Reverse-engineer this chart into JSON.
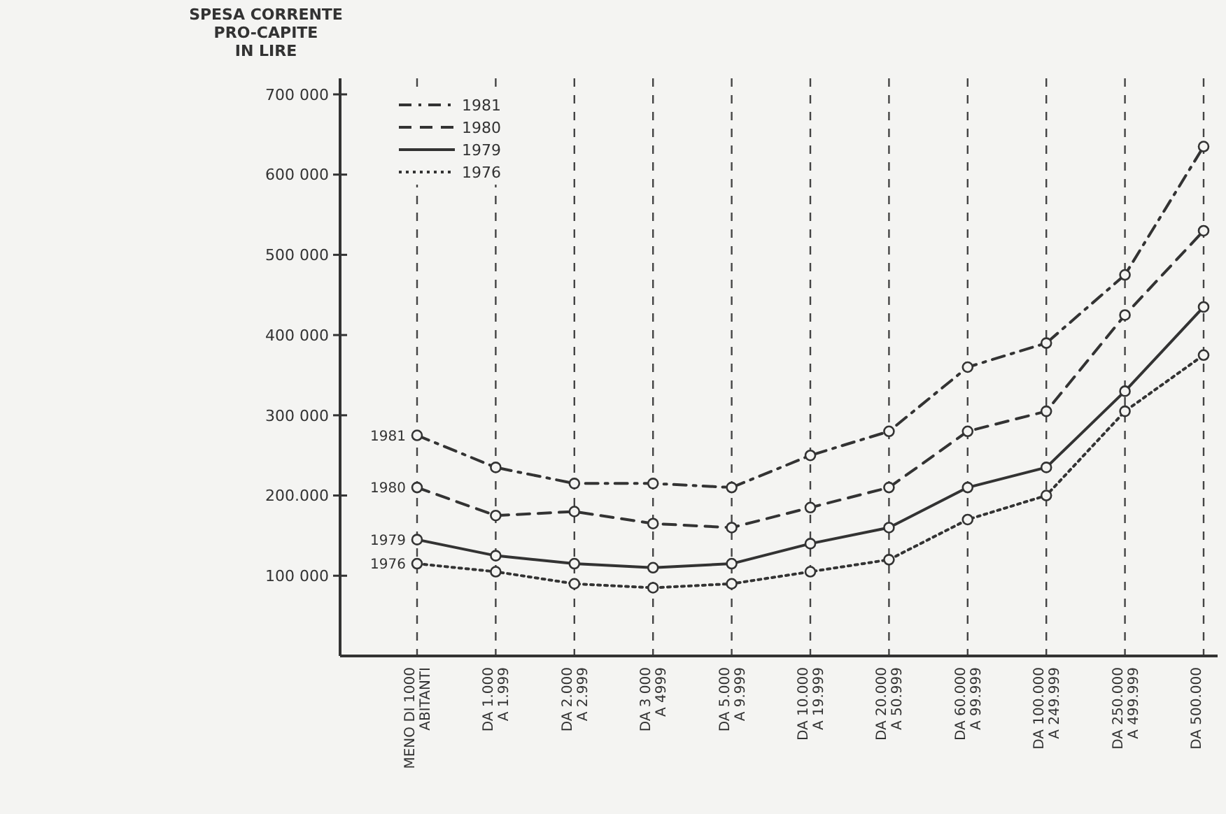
{
  "chart_data": {
    "type": "line",
    "ylabel": "SPESA CORRENTE\nPRO-CAPITE\nIN LIRE",
    "categories": [
      "MENO DI 1000\nABITANTI",
      "DA 1.000\nA 1.999",
      "DA 2.000\nA 2.999",
      "DA 3 000\nA 4999",
      "DA 5.000\nA 9.999",
      "DA 10.000\nA 19.999",
      "DA 20.000\nA 50.999",
      "DA 60.000\nA 99.999",
      "DA 100.000\nA 249.999",
      "DA 250.000\nA 499.999",
      "DA 500.000"
    ],
    "series": [
      {
        "name": "1981",
        "color": "#333333",
        "line_style": "dashdot",
        "values": [
          275000,
          235000,
          215000,
          215000,
          210000,
          250000,
          280000,
          360000,
          390000,
          475000,
          635000
        ]
      },
      {
        "name": "1980",
        "color": "#333333",
        "line_style": "dashed",
        "values": [
          210000,
          175000,
          180000,
          165000,
          160000,
          185000,
          210000,
          280000,
          305000,
          425000,
          530000
        ]
      },
      {
        "name": "1979",
        "color": "#333333",
        "line_style": "solid",
        "values": [
          145000,
          125000,
          115000,
          110000,
          115000,
          140000,
          160000,
          210000,
          235000,
          330000,
          435000
        ]
      },
      {
        "name": "1976",
        "color": "#333333",
        "line_style": "dotted",
        "values": [
          115000,
          105000,
          90000,
          85000,
          90000,
          105000,
          120000,
          170000,
          200000,
          305000,
          375000
        ]
      }
    ],
    "ylim": [
      0,
      720000
    ],
    "yticks": [
      {
        "value": 100000,
        "label": "100 000"
      },
      {
        "value": 200000,
        "label": "200.000"
      },
      {
        "value": 300000,
        "label": "300 000"
      },
      {
        "value": 400000,
        "label": "400 000"
      },
      {
        "value": 500000,
        "label": "500 000"
      },
      {
        "value": 600000,
        "label": "600 000"
      },
      {
        "value": 700000,
        "label": "700 000"
      }
    ],
    "grid": "x",
    "legend": "top left",
    "marker": "circle"
  }
}
